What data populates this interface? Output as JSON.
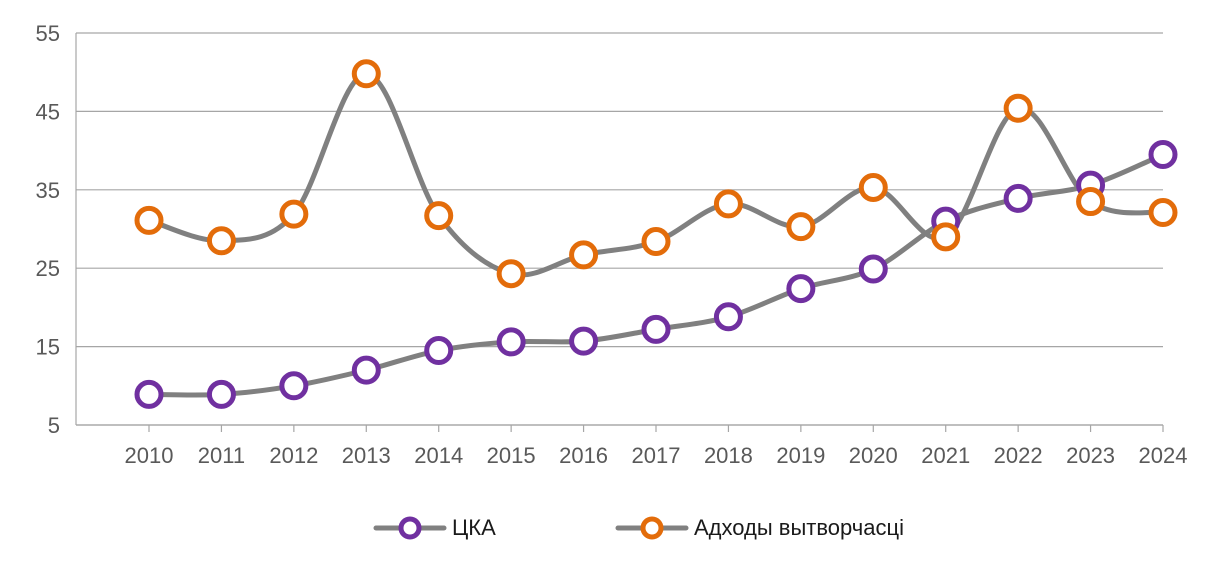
{
  "chart_data": {
    "type": "line",
    "categories": [
      "2010",
      "2011",
      "2012",
      "2013",
      "2014",
      "2015",
      "2016",
      "2017",
      "2018",
      "2019",
      "2020",
      "2021",
      "2022",
      "2023",
      "2024"
    ],
    "series": [
      {
        "name": "ЦКА",
        "values": [
          8.9,
          8.9,
          10.0,
          12.0,
          14.5,
          15.6,
          15.7,
          17.2,
          18.8,
          22.4,
          24.9,
          31.0,
          33.9,
          35.6,
          39.5
        ],
        "marker_color": "#7030a0"
      },
      {
        "name": "Адходы вытворчасці",
        "values": [
          31.1,
          28.5,
          31.9,
          49.8,
          31.7,
          24.3,
          26.7,
          28.4,
          33.2,
          30.3,
          35.3,
          29.0,
          45.4,
          33.5,
          32.1
        ],
        "marker_color": "#e36c0a"
      }
    ],
    "y_ticks": [
      "55",
      "45",
      "35",
      "25",
      "15",
      "5"
    ],
    "ylim": [
      5,
      55
    ],
    "line_color": "#808080",
    "grid": "horizontal",
    "legend_position": "bottom",
    "smooth": true
  }
}
